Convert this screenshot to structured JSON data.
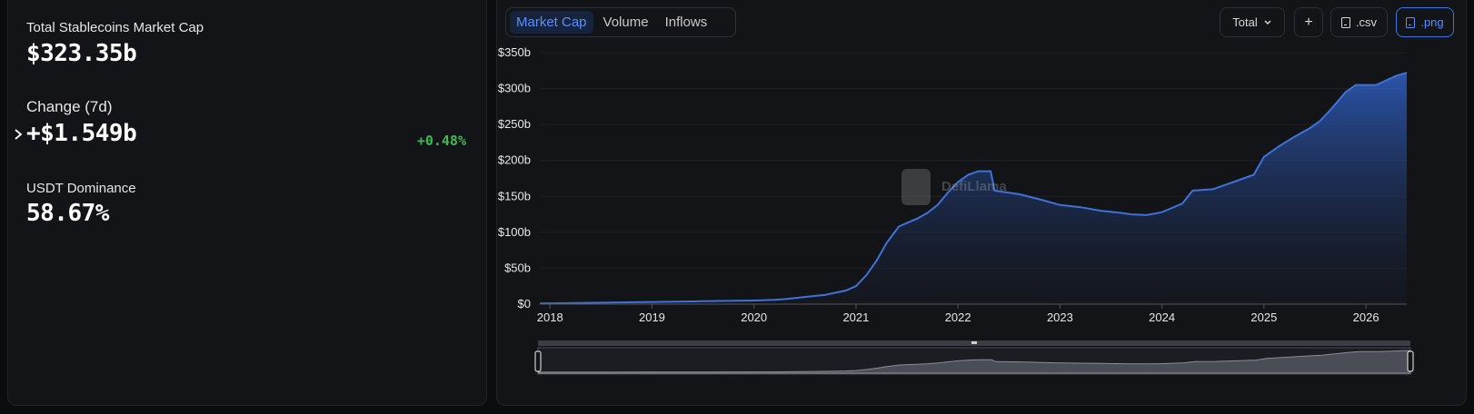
{
  "stats": {
    "market_cap_label": "Total Stablecoins Market Cap",
    "market_cap_value": "$323.35b",
    "change_label": "Change (7d)",
    "change_value": "+$1.549b",
    "change_pct": "+0.48%",
    "dominance_label": "USDT Dominance",
    "dominance_value": "58.67%"
  },
  "tabs": [
    {
      "label": "Market Cap",
      "active": true
    },
    {
      "label": "Volume",
      "active": false
    },
    {
      "label": "Inflows",
      "active": false
    }
  ],
  "toolbar": {
    "total_label": "Total",
    "add_label": "+",
    "csv_label": ".csv",
    "png_label": ".png"
  },
  "watermark": "DefiLlama",
  "colors": {
    "accent": "#3d74e0",
    "positive": "#3fb950",
    "line": "#3e72d9"
  },
  "chart_data": {
    "type": "area",
    "title": "",
    "xlabel": "",
    "ylabel": "",
    "x_ticks": [
      "2018",
      "2019",
      "2020",
      "2021",
      "2022",
      "2023",
      "2024",
      "2025",
      "2026"
    ],
    "y_ticks": [
      "$0",
      "$50b",
      "$100b",
      "$150b",
      "$200b",
      "$250b",
      "$300b",
      "$350b"
    ],
    "ylim": [
      0,
      350
    ],
    "xlim": [
      2017.9,
      2026.4
    ],
    "grid": true,
    "series": [
      {
        "x": [
          2017.9,
          2018.5,
          2019.0,
          2019.5,
          2020.0,
          2020.2,
          2020.3,
          2020.5,
          2020.7,
          2020.9,
          2021.0,
          2021.1,
          2021.2,
          2021.3,
          2021.42,
          2021.5,
          2021.6,
          2021.7,
          2021.8,
          2021.9,
          2022.0,
          2022.1,
          2022.2,
          2022.32,
          2022.36,
          2022.45,
          2022.6,
          2022.8,
          2023.0,
          2023.2,
          2023.4,
          2023.6,
          2023.7,
          2023.85,
          2024.0,
          2024.2,
          2024.3,
          2024.5,
          2024.7,
          2024.8,
          2024.9,
          2025.0,
          2025.15,
          2025.3,
          2025.45,
          2025.55,
          2025.65,
          2025.8,
          2025.9,
          2026.1,
          2026.3,
          2026.4
        ],
        "y": [
          1,
          2,
          3,
          4,
          5,
          6,
          7,
          10,
          13,
          19,
          25,
          40,
          60,
          85,
          108,
          113,
          119,
          127,
          138,
          155,
          170,
          180,
          185,
          185,
          158,
          156,
          153,
          146,
          138,
          135,
          130,
          127,
          125,
          124,
          128,
          140,
          158,
          160,
          170,
          175,
          180,
          205,
          220,
          233,
          245,
          255,
          270,
          295,
          305,
          305,
          318,
          322
        ]
      }
    ],
    "color": "#3e72d9"
  }
}
